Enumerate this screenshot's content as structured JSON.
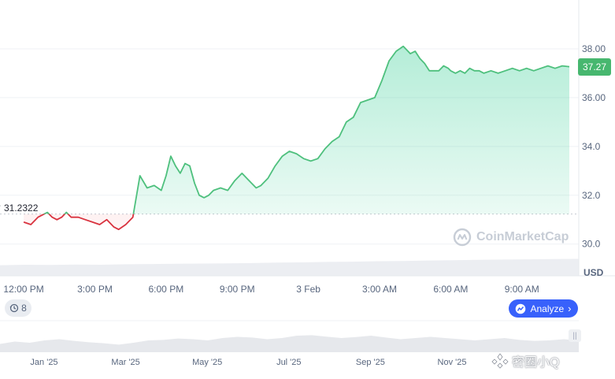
{
  "chart_data": {
    "type": "area",
    "currency": "USD",
    "current_price": "37.27",
    "reference_price": "31.2322",
    "y_ticks": [
      "30.0",
      "32.0",
      "34.0",
      "36.00",
      "38.00"
    ],
    "ylim": [
      28.7,
      40.0
    ],
    "x_ticks": [
      "12:00 PM",
      "3:00 PM",
      "6:00 PM",
      "9:00 PM",
      "3 Feb",
      "3:00 AM",
      "6:00 AM",
      "9:00 AM"
    ],
    "x_unit": "hours_from_Feb_2_11AM",
    "xlim": [
      0.0,
      24.4
    ],
    "series": [
      {
        "x": [
          1.0,
          1.3,
          1.6,
          1.8,
          2.0,
          2.2,
          2.4,
          2.6,
          2.8,
          3.0,
          3.3,
          3.6,
          3.9,
          4.2,
          4.5,
          4.8,
          5.0,
          5.3,
          5.6,
          5.9,
          6.2,
          6.5,
          6.8,
          7.0,
          7.2,
          7.4,
          7.6,
          7.8,
          8.0,
          8.2,
          8.4,
          8.6,
          8.8,
          9.0,
          9.3,
          9.6,
          9.9,
          10.2,
          10.5,
          10.8,
          11.0,
          11.3,
          11.6,
          11.9,
          12.2,
          12.5,
          12.8,
          13.1,
          13.4,
          13.7,
          14.0,
          14.3,
          14.6,
          14.9,
          15.2,
          15.5,
          15.8,
          16.1,
          16.4,
          16.7,
          17.0,
          17.3,
          17.5,
          17.7,
          17.9,
          18.1,
          18.3,
          18.5,
          18.7,
          18.9,
          19.0,
          19.2,
          19.4,
          19.6,
          19.8,
          20.0,
          20.2,
          20.4,
          20.7,
          21.0,
          21.3,
          21.6,
          21.9,
          22.2,
          22.5,
          22.8,
          23.1,
          23.4,
          23.7,
          24.0
        ],
        "y": [
          30.9,
          30.8,
          31.1,
          31.2,
          31.3,
          31.1,
          31.0,
          31.1,
          31.3,
          31.1,
          31.1,
          31.0,
          30.9,
          30.8,
          31.0,
          30.7,
          30.6,
          30.8,
          31.1,
          32.8,
          32.3,
          32.4,
          32.2,
          32.8,
          33.6,
          33.2,
          32.9,
          33.3,
          33.2,
          32.5,
          32.0,
          31.9,
          32.0,
          32.2,
          32.3,
          32.2,
          32.6,
          32.9,
          32.6,
          32.3,
          32.4,
          32.7,
          33.2,
          33.6,
          33.8,
          33.7,
          33.5,
          33.4,
          33.5,
          33.9,
          34.2,
          34.4,
          35.0,
          35.2,
          35.8,
          35.9,
          36.0,
          36.7,
          37.5,
          37.9,
          38.1,
          37.8,
          37.9,
          37.6,
          37.4,
          37.1,
          37.1,
          37.1,
          37.3,
          37.2,
          37.1,
          37.0,
          37.1,
          37.0,
          37.2,
          37.1,
          37.1,
          37.0,
          37.1,
          37.0,
          37.1,
          37.2,
          37.1,
          37.2,
          37.1,
          37.2,
          37.3,
          37.2,
          37.3,
          37.27
        ]
      }
    ],
    "volume": [
      0.18,
      0.2,
      0.19,
      0.21,
      0.2,
      0.22,
      0.23,
      0.24,
      0.25,
      0.26,
      0.27,
      0.29,
      0.3,
      0.32,
      0.33,
      0.35,
      0.36,
      0.38,
      0.39,
      0.41,
      0.42,
      0.43,
      0.44,
      0.45
    ],
    "navigator": {
      "x_ticks": [
        "Jan '25",
        "Mar '25",
        "May '25",
        "Jul '25",
        "Sep '25",
        "Nov '25"
      ],
      "values": [
        0.35,
        0.45,
        0.4,
        0.5,
        0.55,
        0.48,
        0.42,
        0.38,
        0.32,
        0.4,
        0.5,
        0.52,
        0.58,
        0.55,
        0.5,
        0.6,
        0.65,
        0.62,
        0.55,
        0.6,
        0.7,
        0.72,
        0.66,
        0.6,
        0.64,
        0.7,
        0.62,
        0.55,
        0.6,
        0.65,
        0.6,
        0.55,
        0.5,
        0.55,
        0.6,
        0.52,
        0.48,
        0.5,
        0.55,
        0.5
      ]
    },
    "colors": {
      "up": "#16c784",
      "down": "#ea3943",
      "line_up": "#4ec07d",
      "line_down": "#d9333f",
      "grid": "#eff2f5",
      "badge": "#47b76f"
    },
    "watermark": "CoinMarketCap",
    "grid": true
  },
  "ui": {
    "analyze_label": "Analyze",
    "history_count": "8",
    "social_watermark": "密圈小Q"
  }
}
